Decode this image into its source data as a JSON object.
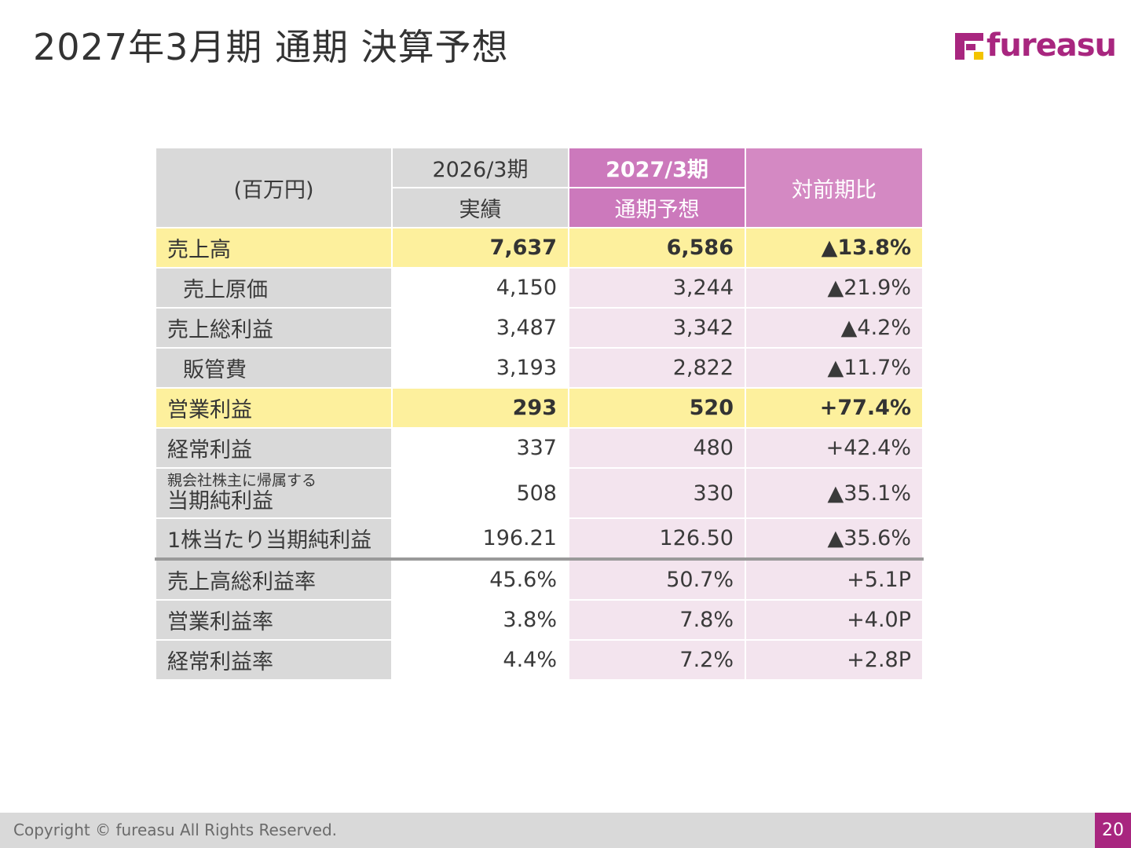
{
  "page": {
    "title": "2027年3月期 通期 決算予想",
    "logo_text": "fureasu"
  },
  "table": {
    "unit": "(百万円)",
    "columns": {
      "prev_year": "2026/3期",
      "prev_type": "実績",
      "fcst_year": "2027/3期",
      "fcst_type": "通期予想",
      "yoy": "対前期比"
    },
    "rows": [
      {
        "label": "売上高",
        "prev": "7,637",
        "fcst": "6,586",
        "yoy": "▲13.8%"
      },
      {
        "label": "売上原価",
        "prev": "4,150",
        "fcst": "3,244",
        "yoy": "▲21.9%"
      },
      {
        "label": "売上総利益",
        "prev": "3,487",
        "fcst": "3,342",
        "yoy": "▲4.2%"
      },
      {
        "label": "販管費",
        "prev": "3,193",
        "fcst": "2,822",
        "yoy": "▲11.7%"
      },
      {
        "label": "営業利益",
        "prev": "293",
        "fcst": "520",
        "yoy": "+77.4%"
      },
      {
        "label": "経常利益",
        "prev": "337",
        "fcst": "480",
        "yoy": "+42.4%"
      },
      {
        "label_small": "親会社株主に帰属する",
        "label": "当期純利益",
        "prev": "508",
        "fcst": "330",
        "yoy": "▲35.1%"
      },
      {
        "label": "1株当たり当期純利益",
        "prev": "196.21",
        "fcst": "126.50",
        "yoy": "▲35.6%"
      },
      {
        "label": "売上高総利益率",
        "prev": "45.6%",
        "fcst": "50.7%",
        "yoy": "+5.1P"
      },
      {
        "label": "営業利益率",
        "prev": "3.8%",
        "fcst": "7.8%",
        "yoy": "+4.0P"
      },
      {
        "label": "経常利益率",
        "prev": "4.4%",
        "fcst": "7.2%",
        "yoy": "+2.8P"
      }
    ]
  },
  "footer": {
    "copyright": "Copyright © fureasu All Rights Reserved.",
    "page_number": "20"
  }
}
